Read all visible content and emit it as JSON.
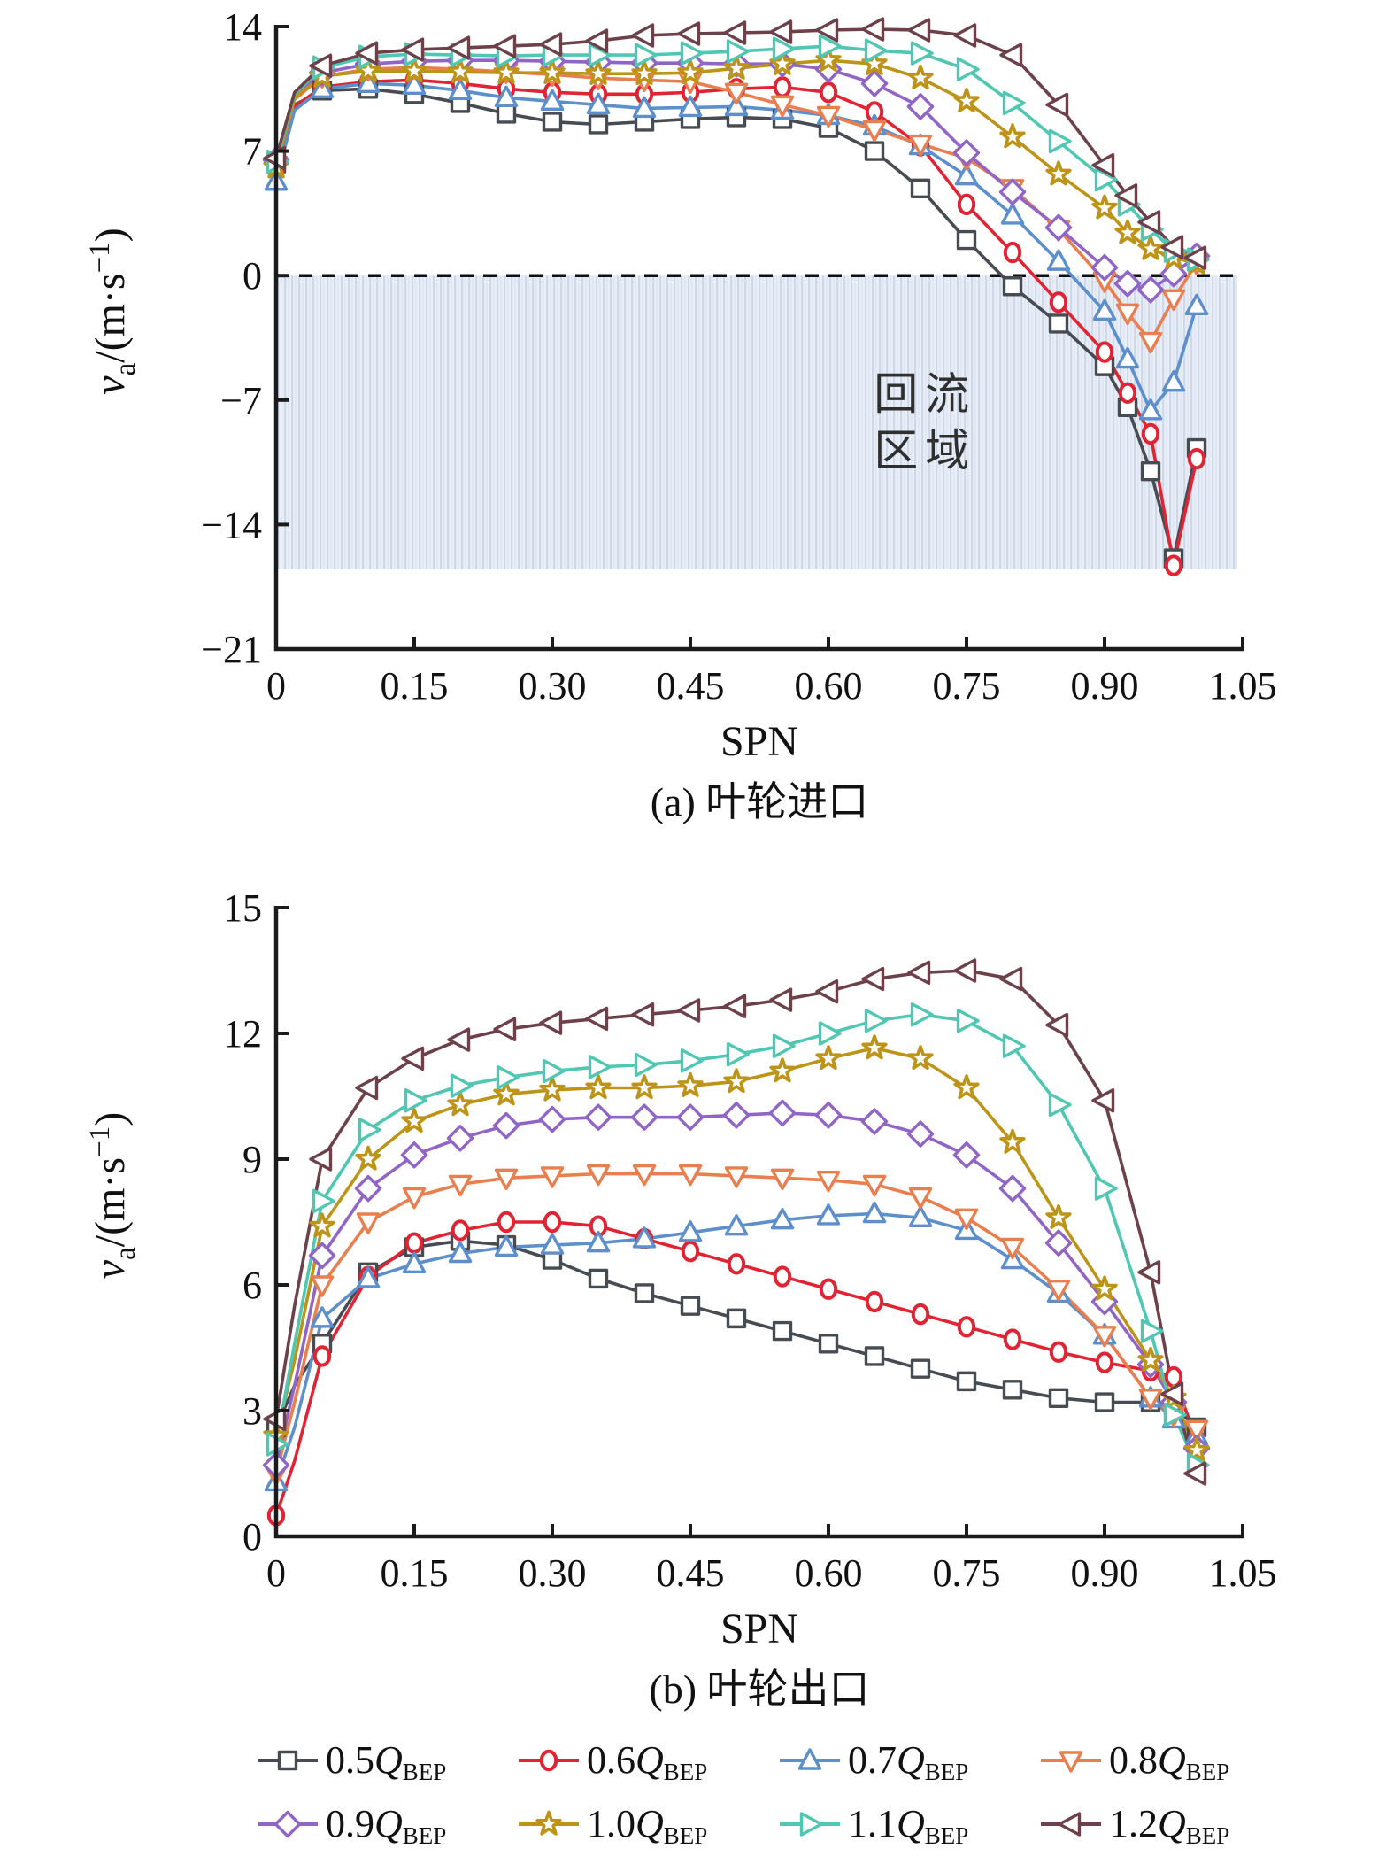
{
  "page": {
    "background": "#ffffff"
  },
  "text": {
    "xlabel": "SPN",
    "ylabel": {
      "v": "v",
      "v_sub": "a",
      "mid": "/(m·s",
      "sup": "−1",
      "close": ")"
    },
    "caption_a": "(a) 叶轮进口",
    "caption_b": "(b) 叶轮出口",
    "recirculation_line1": "回流",
    "recirculation_line2": "区域"
  },
  "style": {
    "axis_color": "#1b1b1b",
    "tick_font_size": 44,
    "shade_base": "#e9eef7",
    "shade_stripe1": "#ccd9ec",
    "shade_stripe2": "#dde6f2",
    "annotation_color": "#2f2f2f"
  },
  "legend": {
    "rows": [
      [
        {
          "num": "0.5",
          "q": "Q",
          "sub": "BEP",
          "series": 0
        },
        {
          "num": "0.6",
          "q": "Q",
          "sub": "BEP",
          "series": 1
        },
        {
          "num": "0.7",
          "q": "Q",
          "sub": "BEP",
          "series": 2
        },
        {
          "num": "0.8",
          "q": "Q",
          "sub": "BEP",
          "series": 3
        }
      ],
      [
        {
          "num": "0.9",
          "q": "Q",
          "sub": "BEP",
          "series": 4
        },
        {
          "num": "1.0",
          "q": "Q",
          "sub": "BEP",
          "series": 5
        },
        {
          "num": "1.1",
          "q": "Q",
          "sub": "BEP",
          "series": 6
        },
        {
          "num": "1.2",
          "q": "Q",
          "sub": "BEP",
          "series": 7
        }
      ]
    ]
  },
  "chart_data": [
    {
      "type": "line",
      "title": "(a) 叶轮进口",
      "xlabel": "SPN",
      "ylabel": "va/(m·s−1)",
      "xlim": [
        0,
        1.05
      ],
      "ylim": [
        -21,
        14
      ],
      "x_ticks": [
        0,
        0.15,
        0.3,
        0.45,
        0.6,
        0.75,
        0.9,
        1.05
      ],
      "x_tick_labels": [
        "0",
        "0.15",
        "0.30",
        "0.45",
        "0.60",
        "0.75",
        "0.90",
        "1.05"
      ],
      "y_ticks": [
        14,
        7,
        0,
        -7,
        -14,
        -21
      ],
      "y_tick_labels": [
        "14",
        "7",
        "0",
        "−7",
        "−14",
        "−21"
      ],
      "zero_line_dashed": true,
      "shaded_region": {
        "y_from": 0,
        "y_to": -16.5,
        "label": "回流区域"
      },
      "annotation": {
        "lines": [
          "回流",
          "区域"
        ],
        "x": 0.705,
        "y_line1": -7.5,
        "y_line2": -10.7
      },
      "x": [
        0,
        0.02,
        0.05,
        0.1,
        0.15,
        0.2,
        0.25,
        0.3,
        0.35,
        0.4,
        0.45,
        0.5,
        0.55,
        0.6,
        0.65,
        0.7,
        0.75,
        0.8,
        0.85,
        0.9,
        0.925,
        0.95,
        0.975,
        1.0
      ],
      "series": [
        {
          "name": "0.5QBEP",
          "color": "#474b52",
          "marker": "square",
          "y": [
            6.3,
            9.6,
            10.4,
            10.5,
            10.2,
            9.7,
            9.1,
            8.65,
            8.5,
            8.65,
            8.8,
            8.9,
            8.8,
            8.3,
            7.0,
            4.9,
            2.0,
            -0.6,
            -2.7,
            -5.1,
            -7.4,
            -11.0,
            -15.9,
            -9.7
          ]
        },
        {
          "name": "0.6QBEP",
          "color": "#e02433",
          "marker": "circle",
          "y": [
            6.0,
            9.5,
            10.6,
            10.9,
            11.0,
            10.8,
            10.5,
            10.3,
            10.2,
            10.2,
            10.3,
            10.5,
            10.6,
            10.3,
            9.2,
            7.3,
            4.0,
            1.3,
            -1.5,
            -4.3,
            -6.6,
            -8.9,
            -16.3,
            -10.3
          ]
        },
        {
          "name": "0.7QBEP",
          "color": "#5c8fcb",
          "marker": "triangle-up",
          "y": [
            5.3,
            9.3,
            10.5,
            10.8,
            10.7,
            10.4,
            10.0,
            9.8,
            9.6,
            9.4,
            9.45,
            9.5,
            9.3,
            9.0,
            8.4,
            7.3,
            5.6,
            3.4,
            0.8,
            -2.0,
            -4.7,
            -7.6,
            -6.0,
            -1.7
          ]
        },
        {
          "name": "0.8QBEP",
          "color": "#e97e4e",
          "marker": "triangle-down",
          "y": [
            6.2,
            9.9,
            11.2,
            11.6,
            11.7,
            11.6,
            11.45,
            11.3,
            11.1,
            11.0,
            10.9,
            10.3,
            9.6,
            9.0,
            8.2,
            7.4,
            6.6,
            4.9,
            2.6,
            -0.3,
            -2.1,
            -3.7,
            -1.3,
            0.7
          ]
        },
        {
          "name": "0.9QBEP",
          "color": "#9165c5",
          "marker": "diamond",
          "y": [
            6.5,
            10.1,
            11.4,
            11.9,
            12.05,
            12.1,
            12.1,
            12.05,
            12.0,
            11.95,
            11.95,
            11.9,
            11.9,
            11.6,
            10.8,
            9.5,
            6.9,
            4.7,
            2.7,
            0.45,
            -0.45,
            -0.8,
            0.1,
            1.1
          ]
        },
        {
          "name": "1.0QBEP",
          "color": "#bd9418",
          "marker": "star",
          "y": [
            6.1,
            10.0,
            11.2,
            11.5,
            11.5,
            11.45,
            11.4,
            11.4,
            11.35,
            11.35,
            11.4,
            11.65,
            11.9,
            12.1,
            11.9,
            11.1,
            9.8,
            7.8,
            5.7,
            3.8,
            2.4,
            1.5,
            1.0,
            0.7
          ]
        },
        {
          "name": "1.1QBEP",
          "color": "#4fc7b2",
          "marker": "triangle-right",
          "y": [
            6.4,
            10.2,
            11.7,
            12.3,
            12.45,
            12.4,
            12.35,
            12.4,
            12.4,
            12.4,
            12.5,
            12.6,
            12.75,
            12.9,
            12.65,
            12.5,
            11.6,
            9.7,
            7.55,
            5.4,
            4.0,
            2.6,
            1.4,
            0.9
          ]
        },
        {
          "name": "1.2QBEP",
          "color": "#6d4149",
          "marker": "triangle-left",
          "y": [
            6.6,
            10.3,
            11.8,
            12.5,
            12.7,
            12.8,
            12.9,
            13.0,
            13.2,
            13.5,
            13.6,
            13.65,
            13.7,
            13.8,
            13.85,
            13.8,
            13.5,
            12.4,
            9.6,
            6.2,
            4.5,
            3.0,
            1.6,
            1.0
          ]
        }
      ]
    },
    {
      "type": "line",
      "title": "(b) 叶轮出口",
      "xlabel": "SPN",
      "ylabel": "va/(m·s−1)",
      "xlim": [
        0,
        1.05
      ],
      "ylim": [
        0,
        15
      ],
      "x_ticks": [
        0,
        0.15,
        0.3,
        0.45,
        0.6,
        0.75,
        0.9,
        1.05
      ],
      "x_tick_labels": [
        "0",
        "0.15",
        "0.30",
        "0.45",
        "0.60",
        "0.75",
        "0.90",
        "1.05"
      ],
      "y_ticks": [
        15,
        12,
        9,
        6,
        3,
        0
      ],
      "y_tick_labels": [
        "15",
        "12",
        "9",
        "6",
        "3",
        "0"
      ],
      "zero_line_dashed": false,
      "x": [
        0,
        0.02,
        0.05,
        0.1,
        0.15,
        0.2,
        0.25,
        0.3,
        0.35,
        0.4,
        0.45,
        0.5,
        0.55,
        0.6,
        0.65,
        0.7,
        0.75,
        0.8,
        0.85,
        0.9,
        0.95,
        0.975,
        1.0
      ],
      "series": [
        {
          "name": "0.5QBEP",
          "color": "#474b52",
          "marker": "square",
          "y": [
            2.6,
            3.6,
            4.6,
            6.3,
            6.9,
            7.05,
            6.95,
            6.6,
            6.15,
            5.8,
            5.5,
            5.2,
            4.9,
            4.6,
            4.3,
            4.0,
            3.7,
            3.5,
            3.3,
            3.2,
            3.2,
            3.1,
            2.6
          ]
        },
        {
          "name": "0.6QBEP",
          "color": "#e02433",
          "marker": "circle",
          "y": [
            0.5,
            1.8,
            4.3,
            6.2,
            7.0,
            7.3,
            7.5,
            7.5,
            7.4,
            7.1,
            6.8,
            6.5,
            6.2,
            5.9,
            5.6,
            5.3,
            5.0,
            4.7,
            4.4,
            4.15,
            3.95,
            3.8,
            2.3
          ]
        },
        {
          "name": "0.7QBEP",
          "color": "#5c8fcb",
          "marker": "triangle-up",
          "y": [
            1.3,
            2.6,
            5.2,
            6.15,
            6.5,
            6.75,
            6.9,
            6.95,
            7.0,
            7.1,
            7.25,
            7.4,
            7.55,
            7.65,
            7.7,
            7.6,
            7.3,
            6.6,
            5.8,
            4.8,
            3.3,
            2.8,
            2.4
          ]
        },
        {
          "name": "0.8QBEP",
          "color": "#e97e4e",
          "marker": "triangle-down",
          "y": [
            1.5,
            3.2,
            6.0,
            7.5,
            8.1,
            8.4,
            8.55,
            8.6,
            8.65,
            8.65,
            8.65,
            8.6,
            8.55,
            8.5,
            8.4,
            8.1,
            7.6,
            6.9,
            5.9,
            4.8,
            3.3,
            2.9,
            2.55
          ]
        },
        {
          "name": "0.9QBEP",
          "color": "#9165c5",
          "marker": "diamond",
          "y": [
            1.7,
            3.6,
            6.7,
            8.3,
            9.1,
            9.5,
            9.8,
            9.95,
            10.0,
            10.0,
            10.0,
            10.05,
            10.1,
            10.05,
            9.9,
            9.6,
            9.1,
            8.3,
            7.0,
            5.6,
            4.1,
            3.2,
            2.1
          ]
        },
        {
          "name": "1.0QBEP",
          "color": "#bd9418",
          "marker": "star",
          "y": [
            2.4,
            4.2,
            7.4,
            9.0,
            9.9,
            10.3,
            10.55,
            10.65,
            10.7,
            10.7,
            10.75,
            10.85,
            11.1,
            11.4,
            11.65,
            11.4,
            10.7,
            9.4,
            7.6,
            5.9,
            4.2,
            3.3,
            2.05
          ]
        },
        {
          "name": "1.1QBEP",
          "color": "#4fc7b2",
          "marker": "triangle-right",
          "y": [
            2.2,
            4.6,
            8.0,
            9.7,
            10.4,
            10.75,
            10.95,
            11.1,
            11.2,
            11.25,
            11.35,
            11.5,
            11.7,
            12.0,
            12.3,
            12.45,
            12.3,
            11.7,
            10.3,
            8.3,
            4.9,
            2.9,
            1.7
          ]
        },
        {
          "name": "1.2QBEP",
          "color": "#6d4149",
          "marker": "triangle-left",
          "y": [
            2.8,
            5.5,
            9.0,
            10.7,
            11.4,
            11.85,
            12.1,
            12.25,
            12.35,
            12.45,
            12.55,
            12.65,
            12.8,
            13.0,
            13.3,
            13.45,
            13.5,
            13.3,
            12.2,
            10.4,
            6.3,
            3.4,
            1.5
          ]
        }
      ]
    }
  ]
}
